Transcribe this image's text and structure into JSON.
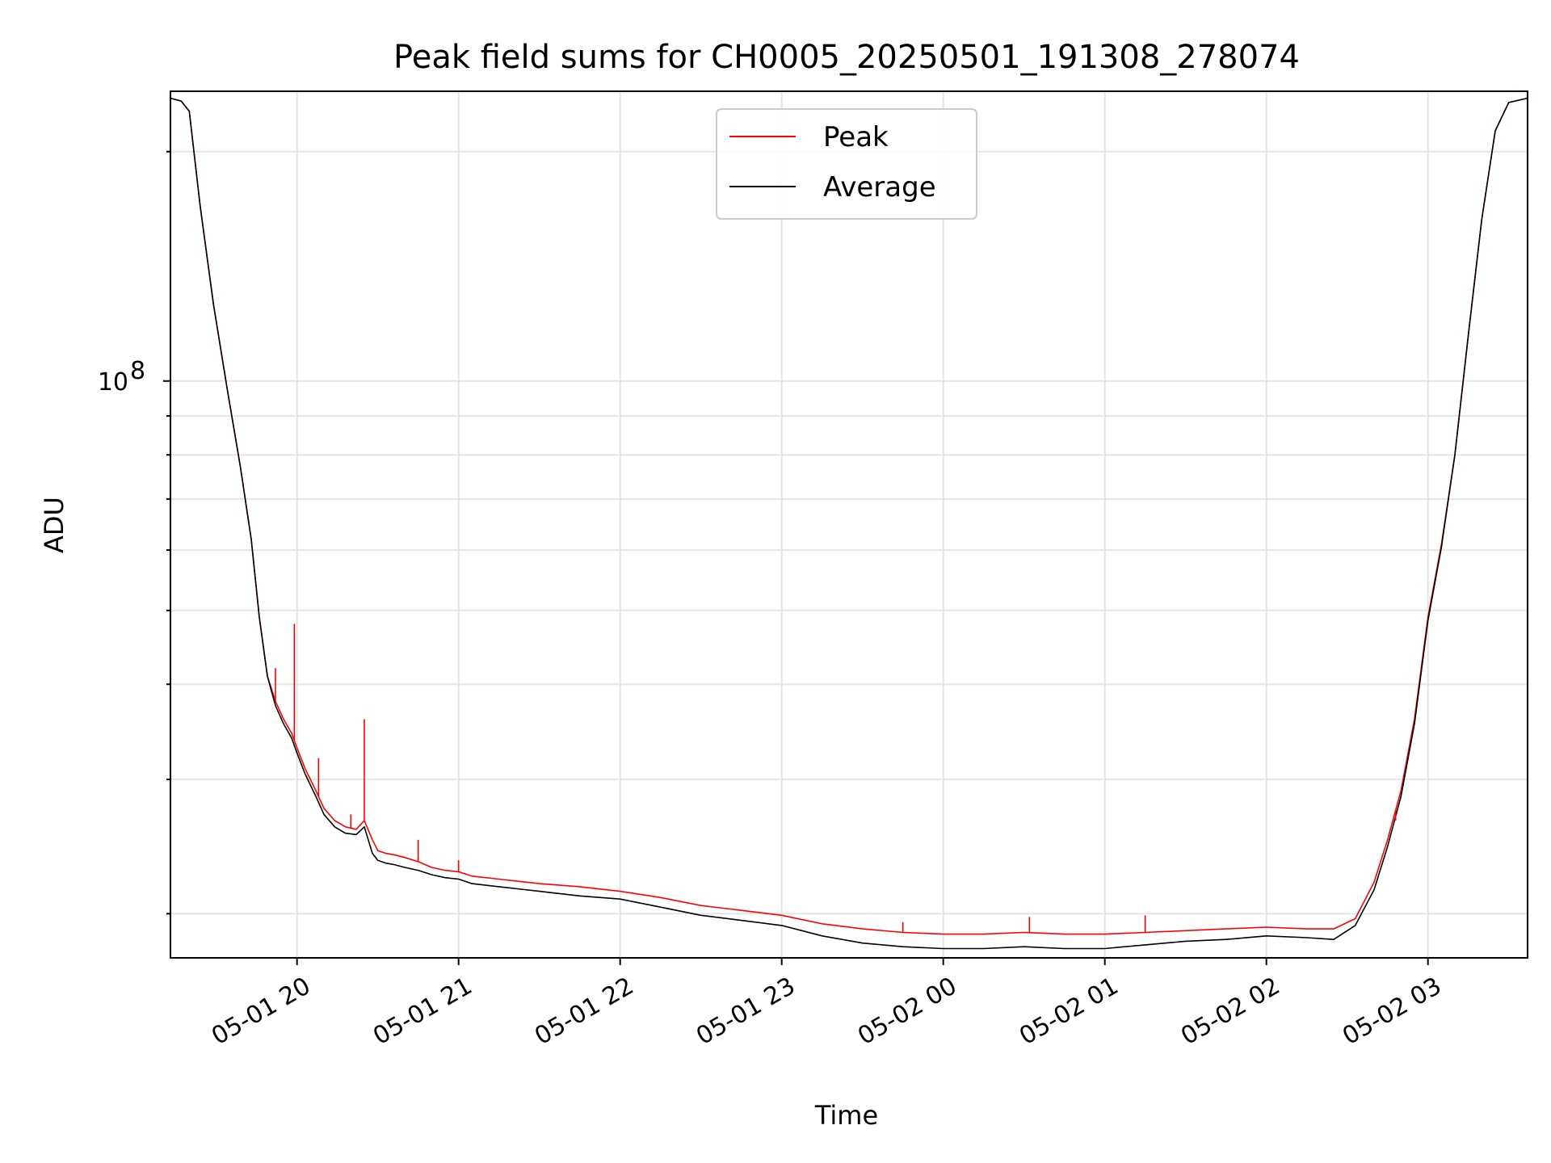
{
  "chart_data": {
    "type": "line",
    "title": "Peak field sums for CH0005_20250501_191308_278074",
    "xlabel": "Time",
    "ylabel": "ADU",
    "yscale": "log",
    "grid": true,
    "legend_placement": "upper center",
    "xlim": [
      "2025-05-01 19:13",
      "2025-05-02 03:37"
    ],
    "ylim": [
      17500000,
      240000000
    ],
    "x_tick_labels": [
      "05-01 20",
      "05-01 21",
      "05-01 22",
      "05-01 23",
      "05-02 00",
      "05-02 01",
      "05-02 02",
      "05-02 03"
    ],
    "x_ticks": [
      "2025-05-01 20:00",
      "2025-05-01 21:00",
      "2025-05-01 22:00",
      "2025-05-01 23:00",
      "2025-05-02 00:00",
      "2025-05-02 01:00",
      "2025-05-02 02:00",
      "2025-05-02 03:00"
    ],
    "y_major_tick_label": "10^8",
    "y_major_tick_value": 100000000,
    "series": [
      {
        "name": "Peak",
        "color": "#ff0000",
        "x": [
          "2025-05-01 19:13",
          "2025-05-01 19:17",
          "2025-05-01 19:20",
          "2025-05-01 19:24",
          "2025-05-01 19:29",
          "2025-05-01 19:34",
          "2025-05-01 19:39",
          "2025-05-01 19:43",
          "2025-05-01 19:46",
          "2025-05-01 19:49",
          "2025-05-01 19:52",
          "2025-05-01 19:55",
          "2025-05-01 19:58",
          "2025-05-01 20:00",
          "2025-05-01 20:03",
          "2025-05-01 20:07",
          "2025-05-01 20:10",
          "2025-05-01 20:14",
          "2025-05-01 20:18",
          "2025-05-01 20:22",
          "2025-05-01 20:25",
          "2025-05-01 20:28",
          "2025-05-01 20:30",
          "2025-05-01 20:33",
          "2025-05-01 20:36",
          "2025-05-01 20:40",
          "2025-05-01 20:45",
          "2025-05-01 20:50",
          "2025-05-01 20:55",
          "2025-05-01 21:00",
          "2025-05-01 21:05",
          "2025-05-01 21:15",
          "2025-05-01 21:30",
          "2025-05-01 21:45",
          "2025-05-01 22:00",
          "2025-05-01 22:15",
          "2025-05-01 22:30",
          "2025-05-01 22:45",
          "2025-05-01 23:00",
          "2025-05-01 23:15",
          "2025-05-01 23:30",
          "2025-05-01 23:45",
          "2025-05-02 00:00",
          "2025-05-02 00:15",
          "2025-05-02 00:30",
          "2025-05-02 00:45",
          "2025-05-02 01:00",
          "2025-05-02 01:15",
          "2025-05-02 01:30",
          "2025-05-02 01:45",
          "2025-05-02 02:00",
          "2025-05-02 02:15",
          "2025-05-02 02:25",
          "2025-05-02 02:33",
          "2025-05-02 02:40",
          "2025-05-02 02:45",
          "2025-05-02 02:50",
          "2025-05-02 02:55",
          "2025-05-02 03:00",
          "2025-05-02 03:05",
          "2025-05-02 03:10",
          "2025-05-02 03:15",
          "2025-05-02 03:20",
          "2025-05-02 03:25",
          "2025-05-02 03:30",
          "2025-05-02 03:37"
        ],
        "y": [
          235000000,
          233000000,
          226000000,
          170000000,
          126000000,
          98000000,
          77000000,
          62000000,
          49000000,
          41000000,
          38000000,
          36000000,
          34500000,
          33000000,
          31000000,
          29000000,
          27500000,
          26500000,
          26000000,
          25800000,
          26500000,
          25000000,
          24200000,
          24000000,
          23900000,
          23700000,
          23400000,
          23000000,
          22800000,
          22700000,
          22400000,
          22200000,
          21900000,
          21700000,
          21400000,
          21000000,
          20500000,
          20200000,
          19900000,
          19400000,
          19100000,
          18900000,
          18800000,
          18800000,
          18900000,
          18800000,
          18800000,
          18900000,
          19000000,
          19100000,
          19200000,
          19100000,
          19100000,
          19700000,
          22000000,
          25000000,
          29000000,
          36000000,
          49000000,
          61000000,
          80000000,
          115000000,
          163000000,
          213000000,
          232000000,
          235000000
        ]
      },
      {
        "name": "Average",
        "color": "#000000",
        "x": [
          "2025-05-01 19:13",
          "2025-05-01 19:17",
          "2025-05-01 19:20",
          "2025-05-01 19:24",
          "2025-05-01 19:29",
          "2025-05-01 19:34",
          "2025-05-01 19:39",
          "2025-05-01 19:43",
          "2025-05-01 19:46",
          "2025-05-01 19:49",
          "2025-05-01 19:52",
          "2025-05-01 19:55",
          "2025-05-01 19:58",
          "2025-05-01 20:00",
          "2025-05-01 20:03",
          "2025-05-01 20:07",
          "2025-05-01 20:10",
          "2025-05-01 20:14",
          "2025-05-01 20:18",
          "2025-05-01 20:22",
          "2025-05-01 20:25",
          "2025-05-01 20:28",
          "2025-05-01 20:30",
          "2025-05-01 20:33",
          "2025-05-01 20:36",
          "2025-05-01 20:40",
          "2025-05-01 20:45",
          "2025-05-01 20:50",
          "2025-05-01 20:55",
          "2025-05-01 21:00",
          "2025-05-01 21:05",
          "2025-05-01 21:15",
          "2025-05-01 21:30",
          "2025-05-01 21:45",
          "2025-05-01 22:00",
          "2025-05-01 22:15",
          "2025-05-01 22:30",
          "2025-05-01 22:45",
          "2025-05-01 23:00",
          "2025-05-01 23:15",
          "2025-05-01 23:30",
          "2025-05-01 23:45",
          "2025-05-02 00:00",
          "2025-05-02 00:15",
          "2025-05-02 00:30",
          "2025-05-02 00:45",
          "2025-05-02 01:00",
          "2025-05-02 01:15",
          "2025-05-02 01:30",
          "2025-05-02 01:45",
          "2025-05-02 02:00",
          "2025-05-02 02:15",
          "2025-05-02 02:25",
          "2025-05-02 02:33",
          "2025-05-02 02:40",
          "2025-05-02 02:45",
          "2025-05-02 02:50",
          "2025-05-02 02:55",
          "2025-05-02 03:00",
          "2025-05-02 03:05",
          "2025-05-02 03:10",
          "2025-05-02 03:15",
          "2025-05-02 03:20",
          "2025-05-02 03:25",
          "2025-05-02 03:30",
          "2025-05-02 03:37"
        ],
        "y": [
          235000000,
          233000000,
          226000000,
          170000000,
          126000000,
          98000000,
          77000000,
          62000000,
          49000000,
          41000000,
          37500000,
          35500000,
          34000000,
          32500000,
          30500000,
          28500000,
          27000000,
          26000000,
          25500000,
          25400000,
          26000000,
          24000000,
          23500000,
          23300000,
          23200000,
          23000000,
          22800000,
          22500000,
          22300000,
          22200000,
          21900000,
          21700000,
          21400000,
          21100000,
          20900000,
          20400000,
          19900000,
          19600000,
          19300000,
          18700000,
          18300000,
          18100000,
          18000000,
          18000000,
          18100000,
          18000000,
          18000000,
          18200000,
          18400000,
          18500000,
          18700000,
          18600000,
          18500000,
          19300000,
          21500000,
          24500000,
          28500000,
          35500000,
          48500000,
          60500000,
          80000000,
          115000000,
          163000000,
          213000000,
          232000000,
          235000000
        ]
      }
    ],
    "spikes": [
      {
        "series": "Peak",
        "x": "2025-05-01 19:52",
        "y": 42000000
      },
      {
        "series": "Peak",
        "x": "2025-05-01 19:59",
        "y": 48000000
      },
      {
        "series": "Peak",
        "x": "2025-05-01 20:08",
        "y": 32000000
      },
      {
        "series": "Peak",
        "x": "2025-05-01 20:20",
        "y": 27000000
      },
      {
        "series": "Peak",
        "x": "2025-05-01 20:25",
        "y": 36000000
      },
      {
        "series": "Peak",
        "x": "2025-05-01 20:45",
        "y": 25000000
      },
      {
        "series": "Peak",
        "x": "2025-05-01 21:00",
        "y": 23500000
      },
      {
        "series": "Peak",
        "x": "2025-05-01 23:45",
        "y": 19500000
      },
      {
        "series": "Peak",
        "x": "2025-05-02 00:32",
        "y": 19800000
      },
      {
        "series": "Peak",
        "x": "2025-05-02 01:15",
        "y": 19900000
      },
      {
        "series": "Peak",
        "x": "2025-05-02 02:48",
        "y": 26500000
      }
    ]
  }
}
